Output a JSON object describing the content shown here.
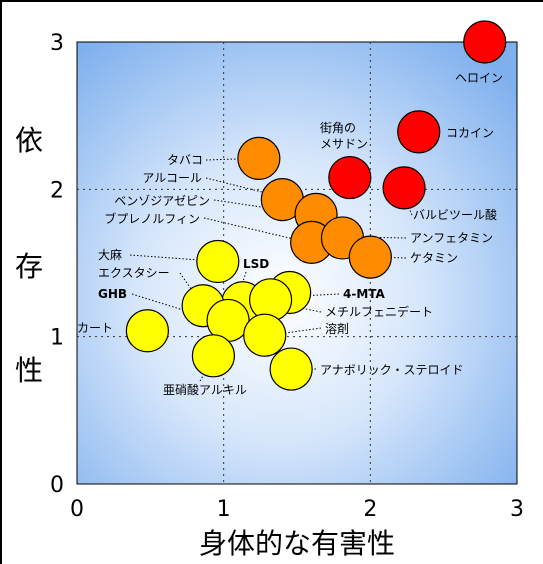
{
  "chart_data": {
    "type": "scatter",
    "xlabel": "身体的な有害性",
    "ylabel": [
      "依",
      "存",
      "性"
    ],
    "xlim": [
      0,
      3
    ],
    "ylim": [
      0,
      3
    ],
    "xticks": [
      "0",
      "1",
      "2",
      "3"
    ],
    "yticks": [
      "0",
      "1",
      "2",
      "3"
    ],
    "grid": "dotted at 1 and 2",
    "colors": {
      "red": "#ff0000",
      "orange": "#ff8c00",
      "yellow": "#ffff00",
      "outline": "#000000"
    },
    "points": [
      {
        "label": "ヘロイン",
        "x": 2.78,
        "y": 3.0,
        "color": "red"
      },
      {
        "label": "コカイン",
        "x": 2.33,
        "y": 2.39,
        "color": "red"
      },
      {
        "label": "街角のメサドン",
        "lines": [
          "街角の",
          "メサドン"
        ],
        "x": 1.86,
        "y": 2.08,
        "color": "red"
      },
      {
        "label": "バルビツール酸",
        "x": 2.23,
        "y": 2.01,
        "color": "red"
      },
      {
        "label": "タバコ",
        "x": 1.24,
        "y": 2.21,
        "color": "orange"
      },
      {
        "label": "アルコール",
        "x": 1.4,
        "y": 1.93,
        "color": "orange"
      },
      {
        "label": "ベンゾジアゼピン",
        "x": 1.63,
        "y": 1.83,
        "color": "orange"
      },
      {
        "label": "ブプレノルフィン",
        "x": 1.6,
        "y": 1.64,
        "color": "orange"
      },
      {
        "label": "アンフェタミン",
        "x": 1.81,
        "y": 1.67,
        "color": "orange"
      },
      {
        "label": "ケタミン",
        "x": 2.0,
        "y": 1.54,
        "color": "orange"
      },
      {
        "label": "大麻",
        "x": 0.96,
        "y": 1.51,
        "color": "yellow"
      },
      {
        "label": "LSD",
        "x": 1.13,
        "y": 1.23,
        "color": "yellow"
      },
      {
        "label": "エクスタシー",
        "x": 0.86,
        "y": 1.21,
        "color": "yellow"
      },
      {
        "label": "GHB",
        "x": 1.03,
        "y": 1.11,
        "color": "yellow"
      },
      {
        "label": "4-MTA",
        "x": 1.45,
        "y": 1.3,
        "color": "yellow"
      },
      {
        "label": "メチルフェニデート",
        "x": 1.32,
        "y": 1.25,
        "color": "yellow"
      },
      {
        "label": "溶剤",
        "x": 1.28,
        "y": 1.01,
        "color": "yellow"
      },
      {
        "label": "カート",
        "x": 0.48,
        "y": 1.04,
        "color": "yellow"
      },
      {
        "label": "亜硝酸アルキル",
        "x": 0.93,
        "y": 0.87,
        "color": "yellow"
      },
      {
        "label": "アナボリック・ステロイド",
        "x": 1.46,
        "y": 0.78,
        "color": "yellow"
      }
    ]
  }
}
